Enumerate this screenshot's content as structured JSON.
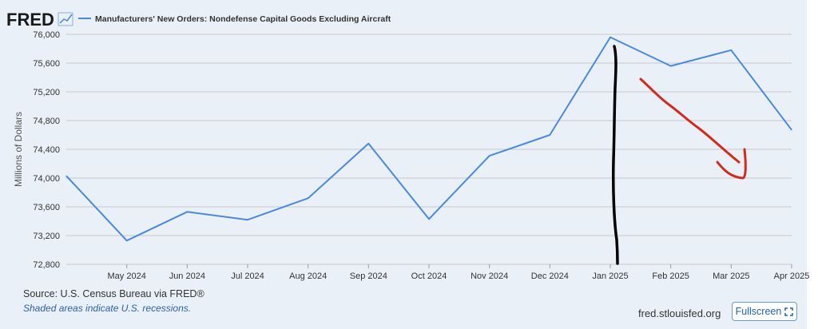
{
  "brand": {
    "logo_text": "FRED"
  },
  "legend": {
    "series_label": "Manufacturers' New Orders: Nondefense Capital Goods Excluding Aircraft"
  },
  "footer": {
    "source": "Source: U.S. Census Bureau via FRED®",
    "note": "Shaded areas indicate U.S. recessions.",
    "site": "fred.stlouisfed.org",
    "fullscreen_label": "Fullscreen"
  },
  "colors": {
    "series": "#4a89dc",
    "annotation_black": "#000000",
    "annotation_red": "#d32a1e"
  },
  "icons": {
    "brand_graph": "line-graph-icon",
    "fullscreen": "fullscreen-icon"
  },
  "chart_data": {
    "type": "line",
    "ylabel": "Millions of Dollars",
    "xlabel": "",
    "ylim": [
      72800,
      76000
    ],
    "yticks": [
      "72,800",
      "73,200",
      "73,600",
      "74,000",
      "74,400",
      "74,800",
      "75,200",
      "75,600",
      "76,000"
    ],
    "ytick_values": [
      72800,
      73200,
      73600,
      74000,
      74400,
      74800,
      75200,
      75600,
      76000
    ],
    "x": [
      "2024-04",
      "2024-05",
      "2024-06",
      "2024-07",
      "2024-08",
      "2024-09",
      "2024-10",
      "2024-11",
      "2024-12",
      "2025-01",
      "2025-02",
      "2025-03",
      "2025-04"
    ],
    "xtick_labels": [
      "May 2024",
      "Jun 2024",
      "Jul 2024",
      "Aug 2024",
      "Sep 2024",
      "Oct 2024",
      "Nov 2024",
      "Dec 2024",
      "Jan 2025",
      "Feb 2025",
      "Mar 2025",
      "Apr 2025"
    ],
    "series": [
      {
        "values": [
          74030,
          73130,
          73530,
          73420,
          73720,
          74480,
          73430,
          74310,
          74600,
          75960,
          75560,
          75780,
          74670
        ]
      }
    ],
    "grid": true,
    "legend_position": "top-left",
    "annotations": [
      "black vertical hand-drawn line at Jan 2025",
      "red hand-drawn downward arrow from Feb 2025 toward Mar 2025"
    ]
  }
}
